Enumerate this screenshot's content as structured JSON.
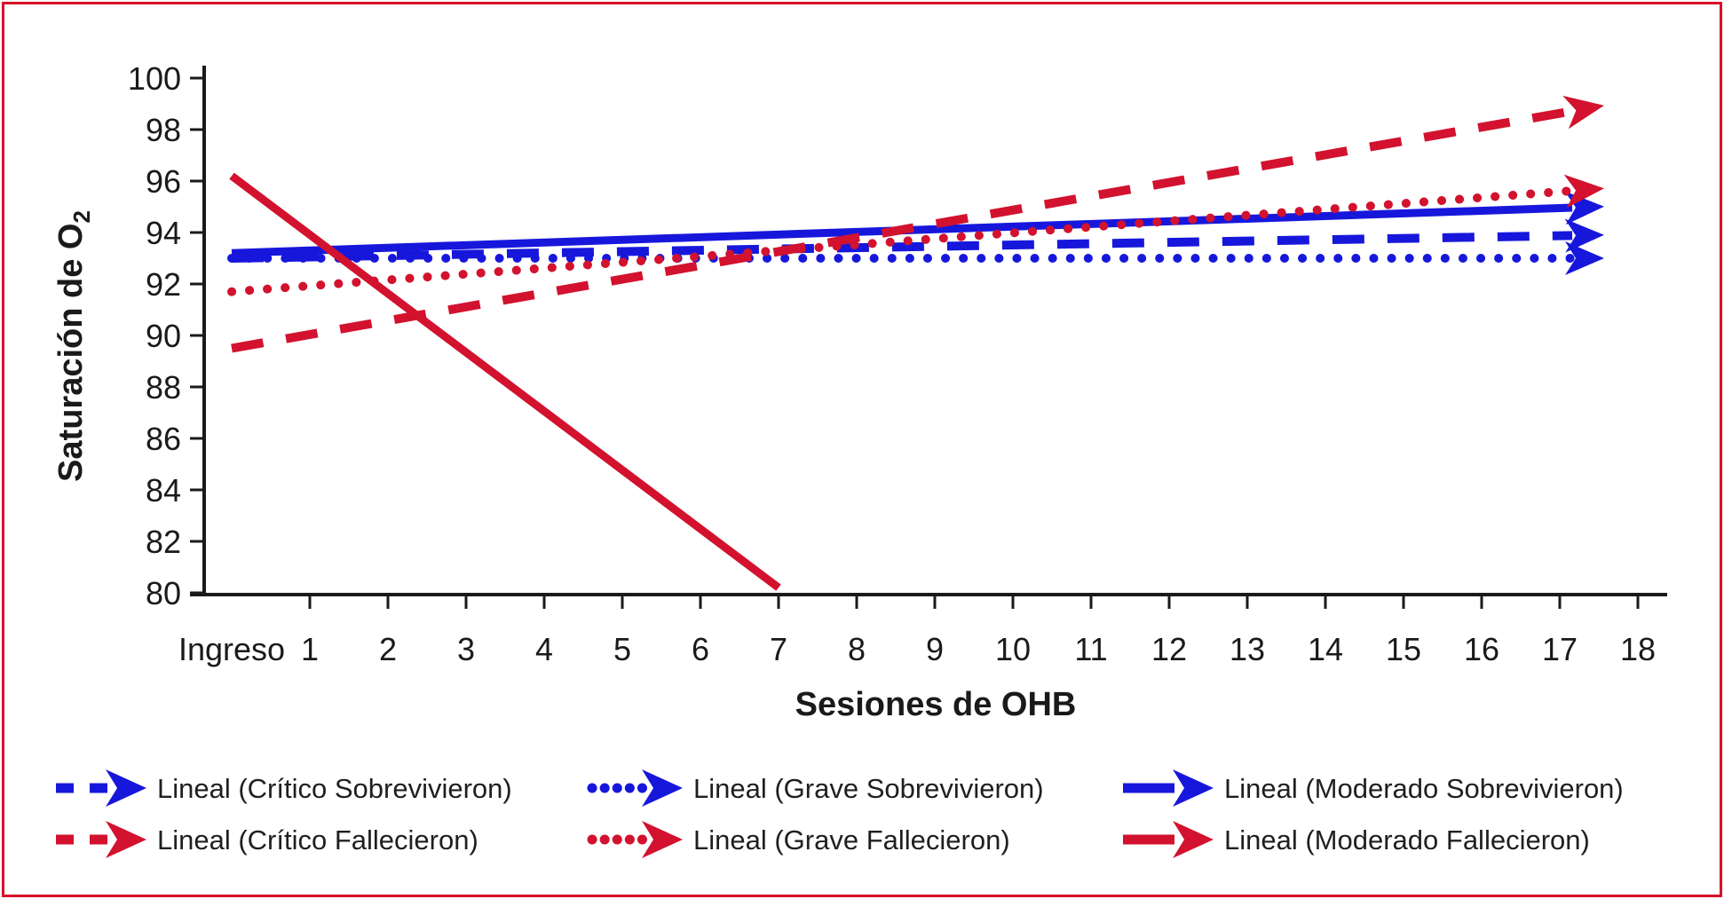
{
  "figure": {
    "background": "#ffffff",
    "border_color": "#D8112B"
  },
  "colors": {
    "blue": "#1717DC",
    "red": "#D2122E",
    "axis": "#1A1A1A",
    "text": "#1F1F1F"
  },
  "chart_data": {
    "type": "line",
    "title": "",
    "xlabel": "Sesiones de OHB",
    "ylabel": {
      "text": "Saturación de O",
      "subscript": "2"
    },
    "x_tick_labels": [
      "Ingreso",
      "1",
      "2",
      "3",
      "4",
      "5",
      "6",
      "7",
      "8",
      "9",
      "10",
      "11",
      "12",
      "13",
      "14",
      "15",
      "16",
      "17",
      "18"
    ],
    "y_ticks": [
      80,
      82,
      84,
      86,
      88,
      90,
      92,
      94,
      96,
      98,
      100
    ],
    "ylim": [
      80,
      100
    ],
    "xlim": [
      0,
      18
    ],
    "grid": false,
    "legend_position": "bottom",
    "legend_columns": 3,
    "series": [
      {
        "name": "Lineal (Crítico Sobrevivieron)",
        "color_key": "blue",
        "style": "dashed",
        "arrow": true,
        "points": [
          [
            0,
            93.0
          ],
          [
            17.5,
            93.9
          ]
        ]
      },
      {
        "name": "Lineal (Grave Sobrevivieron)",
        "color_key": "blue",
        "style": "dotted",
        "arrow": true,
        "points": [
          [
            0,
            93.0
          ],
          [
            17.5,
            93.0
          ]
        ]
      },
      {
        "name": "Lineal (Moderado Sobrevivieron)",
        "color_key": "blue",
        "style": "solid",
        "arrow": true,
        "points": [
          [
            0,
            93.2
          ],
          [
            17.5,
            95.0
          ]
        ]
      },
      {
        "name": "Lineal (Crítico Fallecieron)",
        "color_key": "red",
        "style": "dashed",
        "arrow": true,
        "points": [
          [
            0,
            89.5
          ],
          [
            17.5,
            98.9
          ]
        ]
      },
      {
        "name": "Lineal (Grave Fallecieron)",
        "color_key": "red",
        "style": "dotted",
        "arrow": true,
        "points": [
          [
            0,
            91.7
          ],
          [
            17.5,
            95.7
          ]
        ]
      },
      {
        "name": "Lineal (Moderado Fallecieron)",
        "color_key": "red",
        "style": "solid",
        "arrow": false,
        "points": [
          [
            0,
            96.2
          ],
          [
            7,
            80.2
          ]
        ]
      }
    ]
  }
}
